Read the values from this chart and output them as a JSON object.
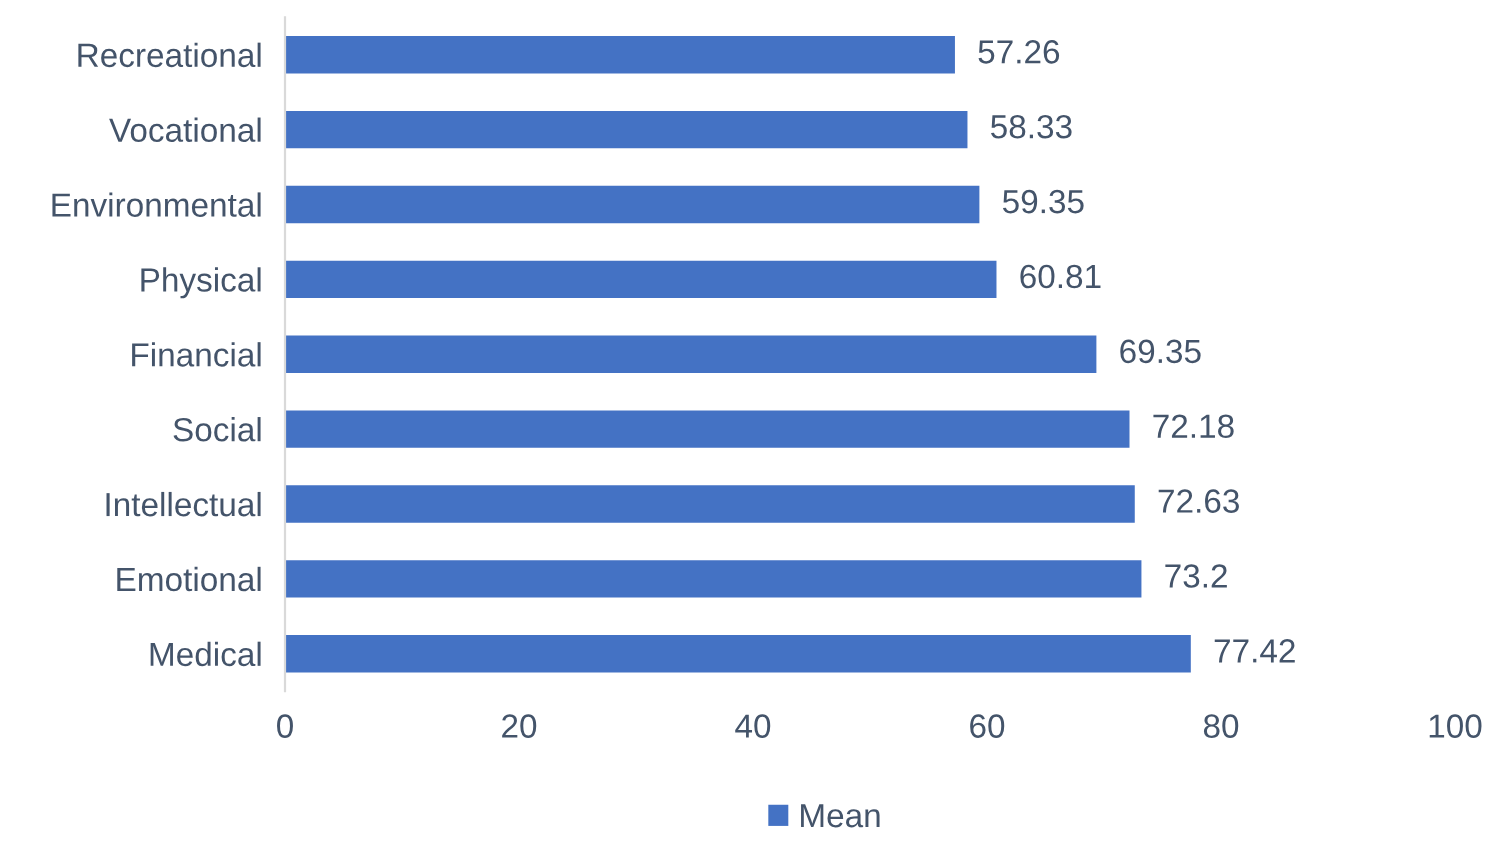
{
  "chart_data": {
    "type": "bar",
    "orientation": "horizontal",
    "categories": [
      "Recreational",
      "Vocational",
      "Environmental",
      "Physical",
      "Financial",
      "Social",
      "Intellectual",
      "Emotional",
      "Medical"
    ],
    "series": [
      {
        "name": "Mean",
        "color": "#4472c4",
        "values": [
          57.26,
          58.33,
          59.35,
          60.81,
          69.35,
          72.18,
          72.63,
          73.2,
          77.42
        ]
      }
    ],
    "data_labels": true,
    "xlim": [
      0,
      100
    ],
    "xticks": [
      0,
      20,
      40,
      60,
      80,
      100
    ],
    "grid": false,
    "legend": "bottom"
  }
}
